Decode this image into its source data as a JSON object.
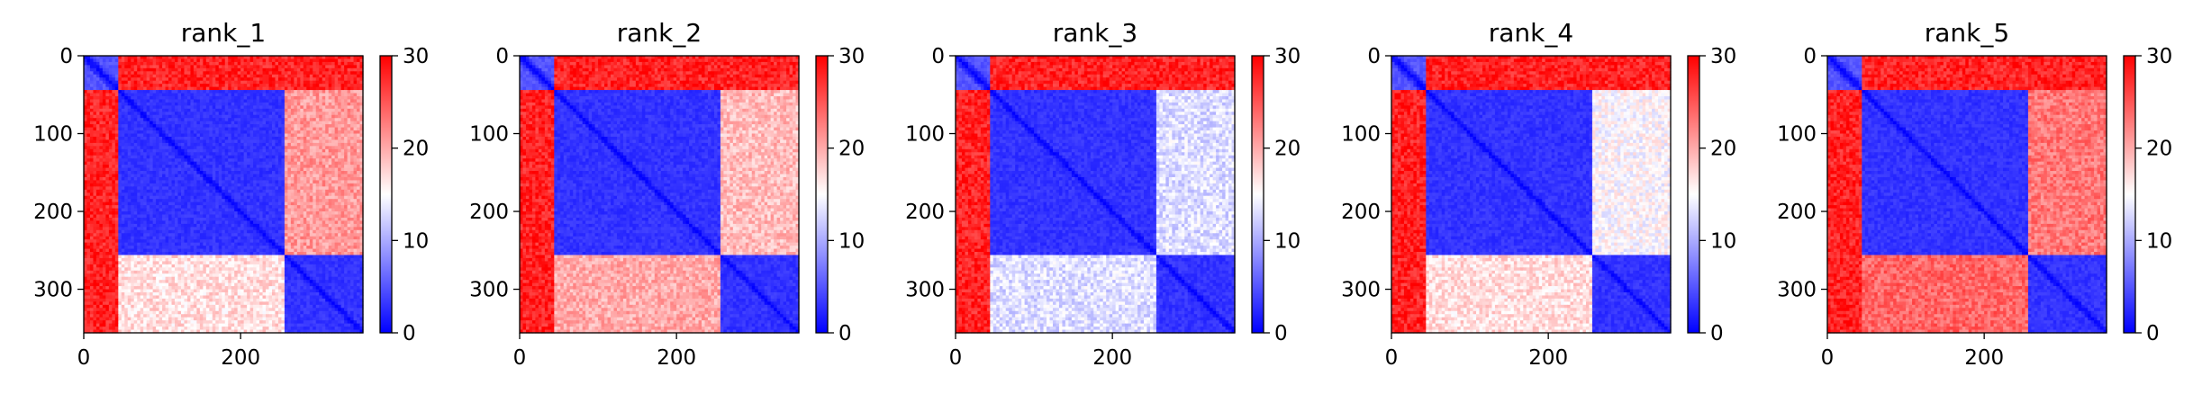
{
  "chart_data": [
    {
      "type": "heatmap",
      "title": "rank_1",
      "xlim": [
        0,
        356
      ],
      "ylim": [
        356,
        0
      ],
      "xticks": [
        0,
        200
      ],
      "yticks": [
        0,
        100,
        200,
        300
      ],
      "colorbar": {
        "range": [
          0,
          30
        ],
        "ticks": [
          0,
          10,
          20,
          30
        ],
        "colormap": "bwr"
      },
      "domains": [
        [
          0,
          45
        ],
        [
          45,
          255
        ],
        [
          255,
          356
        ]
      ],
      "block_values": [
        [
          5,
          28,
          28
        ],
        [
          28,
          3,
          21
        ],
        [
          28,
          17,
          3
        ]
      ]
    },
    {
      "type": "heatmap",
      "title": "rank_2",
      "xlim": [
        0,
        356
      ],
      "ylim": [
        356,
        0
      ],
      "xticks": [
        0,
        200
      ],
      "yticks": [
        0,
        100,
        200,
        300
      ],
      "colorbar": {
        "range": [
          0,
          30
        ],
        "ticks": [
          0,
          10,
          20,
          30
        ],
        "colormap": "bwr"
      },
      "domains": [
        [
          0,
          45
        ],
        [
          45,
          255
        ],
        [
          255,
          356
        ]
      ],
      "block_values": [
        [
          5,
          28,
          28
        ],
        [
          28,
          3,
          19
        ],
        [
          28,
          20,
          3
        ]
      ]
    },
    {
      "type": "heatmap",
      "title": "rank_3",
      "xlim": [
        0,
        356
      ],
      "ylim": [
        356,
        0
      ],
      "xticks": [
        0,
        200
      ],
      "yticks": [
        0,
        100,
        200,
        300
      ],
      "colorbar": {
        "range": [
          0,
          30
        ],
        "ticks": [
          0,
          10,
          20,
          30
        ],
        "colormap": "bwr"
      },
      "domains": [
        [
          0,
          45
        ],
        [
          45,
          255
        ],
        [
          255,
          356
        ]
      ],
      "block_values": [
        [
          5,
          28,
          28
        ],
        [
          28,
          3,
          13
        ],
        [
          28,
          13,
          3
        ]
      ]
    },
    {
      "type": "heatmap",
      "title": "rank_4",
      "xlim": [
        0,
        356
      ],
      "ylim": [
        356,
        0
      ],
      "xticks": [
        0,
        200
      ],
      "yticks": [
        0,
        100,
        200,
        300
      ],
      "colorbar": {
        "range": [
          0,
          30
        ],
        "ticks": [
          0,
          10,
          20,
          30
        ],
        "colormap": "bwr"
      },
      "domains": [
        [
          0,
          45
        ],
        [
          45,
          255
        ],
        [
          255,
          356
        ]
      ],
      "block_values": [
        [
          5,
          28,
          28
        ],
        [
          28,
          3,
          15
        ],
        [
          28,
          17,
          3
        ]
      ]
    },
    {
      "type": "heatmap",
      "title": "rank_5",
      "xlim": [
        0,
        356
      ],
      "ylim": [
        356,
        0
      ],
      "xticks": [
        0,
        200
      ],
      "yticks": [
        0,
        100,
        200,
        300
      ],
      "colorbar": {
        "range": [
          0,
          30
        ],
        "ticks": [
          0,
          10,
          20,
          30
        ],
        "colormap": "bwr"
      },
      "domains": [
        [
          0,
          45
        ],
        [
          45,
          255
        ],
        [
          255,
          356
        ]
      ],
      "block_values": [
        [
          5,
          28,
          28
        ],
        [
          28,
          3,
          23
        ],
        [
          28,
          24,
          3
        ]
      ]
    }
  ]
}
